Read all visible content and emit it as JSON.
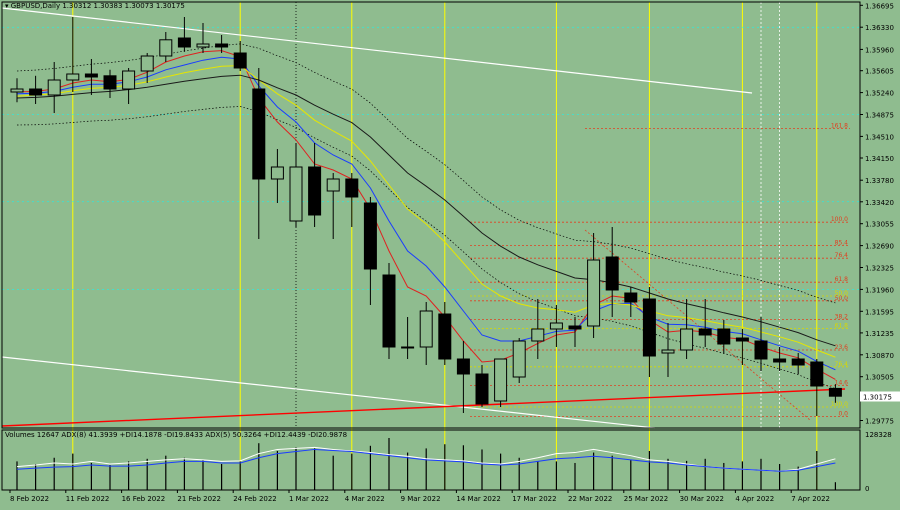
{
  "header": {
    "symbol": "GBPUSD,Daily",
    "ohlc": "1.30312 1.30383 1.30073 1.30175"
  },
  "indicator": {
    "text": "Volumes 12647  ADX(8) 41.3939 +DI14.1878 -DI19.8433  ADX(5) 50.3264 +DI12.4439 -DI20.9878",
    "max_label": "128328",
    "zero_label": "0"
  },
  "colors": {
    "background": "#8fbc8f",
    "bull_candle": "#8fbc8f",
    "bear_candle": "#000000",
    "ma_red": "#e02020",
    "ma_blue": "#1a3cff",
    "ma_yellow": "#e6e600",
    "ma_black": "#1a1a1a",
    "vline": "#ffff00",
    "trend_white": "#ffffff",
    "trend_red": "#ff0000",
    "cyan_level": "#00ffff",
    "fib_red": "#e04020",
    "fib_yellow": "#d8d800",
    "adx_white": "#ffffff",
    "adx_blue": "#1a3cff"
  },
  "chart_data": {
    "type": "candlestick",
    "title": "GBPUSD,Daily",
    "ylim": [
      1.2965,
      1.3675
    ],
    "y_ticks": [
      "1.36695",
      "1.36330",
      "1.35960",
      "1.35605",
      "1.35240",
      "1.34875",
      "1.34510",
      "1.34150",
      "1.33780",
      "1.33420",
      "1.33055",
      "1.32690",
      "1.32325",
      "1.31960",
      "1.31595",
      "1.31235",
      "1.30870",
      "1.30505",
      "1.30175",
      "1.29775"
    ],
    "current_price": "1.30175",
    "x_labels": [
      "8 Feb 2022",
      "11 Feb 2022",
      "16 Feb 2022",
      "21 Feb 2022",
      "24 Feb 2022",
      "1 Mar 2022",
      "4 Mar 2022",
      "9 Mar 2022",
      "14 Mar 2022",
      "17 Mar 2022",
      "22 Mar 2022",
      "25 Mar 2022",
      "30 Mar 2022",
      "4 Apr 2022",
      "7 Apr 2022"
    ],
    "candles": [
      {
        "o": 1.3525,
        "h": 1.3548,
        "l": 1.3508,
        "c": 1.353
      },
      {
        "o": 1.353,
        "h": 1.3552,
        "l": 1.3505,
        "c": 1.352
      },
      {
        "o": 1.352,
        "h": 1.3575,
        "l": 1.349,
        "c": 1.3545
      },
      {
        "o": 1.3545,
        "h": 1.365,
        "l": 1.3525,
        "c": 1.3555
      },
      {
        "o": 1.3555,
        "h": 1.358,
        "l": 1.352,
        "c": 1.355
      },
      {
        "o": 1.3552,
        "h": 1.3562,
        "l": 1.3515,
        "c": 1.353
      },
      {
        "o": 1.353,
        "h": 1.3565,
        "l": 1.3505,
        "c": 1.356
      },
      {
        "o": 1.356,
        "h": 1.359,
        "l": 1.354,
        "c": 1.3585
      },
      {
        "o": 1.3585,
        "h": 1.3625,
        "l": 1.3575,
        "c": 1.3612
      },
      {
        "o": 1.3615,
        "h": 1.365,
        "l": 1.3592,
        "c": 1.36
      },
      {
        "o": 1.36,
        "h": 1.364,
        "l": 1.359,
        "c": 1.3605
      },
      {
        "o": 1.3605,
        "h": 1.362,
        "l": 1.359,
        "c": 1.36
      },
      {
        "o": 1.359,
        "h": 1.361,
        "l": 1.356,
        "c": 1.3565
      },
      {
        "o": 1.353,
        "h": 1.3565,
        "l": 1.328,
        "c": 1.338
      },
      {
        "o": 1.338,
        "h": 1.343,
        "l": 1.334,
        "c": 1.34
      },
      {
        "o": 1.331,
        "h": 1.344,
        "l": 1.33,
        "c": 1.34
      },
      {
        "o": 1.34,
        "h": 1.344,
        "l": 1.33,
        "c": 1.332
      },
      {
        "o": 1.336,
        "h": 1.339,
        "l": 1.328,
        "c": 1.338
      },
      {
        "o": 1.338,
        "h": 1.339,
        "l": 1.33,
        "c": 1.335
      },
      {
        "o": 1.334,
        "h": 1.335,
        "l": 1.317,
        "c": 1.323
      },
      {
        "o": 1.322,
        "h": 1.324,
        "l": 1.308,
        "c": 1.31
      },
      {
        "o": 1.31,
        "h": 1.315,
        "l": 1.308,
        "c": 1.31
      },
      {
        "o": 1.31,
        "h": 1.3175,
        "l": 1.307,
        "c": 1.316
      },
      {
        "o": 1.3155,
        "h": 1.3175,
        "l": 1.307,
        "c": 1.308
      },
      {
        "o": 1.308,
        "h": 1.311,
        "l": 1.299,
        "c": 1.3055
      },
      {
        "o": 1.3055,
        "h": 1.307,
        "l": 1.3,
        "c": 1.3005
      },
      {
        "o": 1.301,
        "h": 1.308,
        "l": 1.3,
        "c": 1.308
      },
      {
        "o": 1.305,
        "h": 1.3115,
        "l": 1.304,
        "c": 1.311
      },
      {
        "o": 1.311,
        "h": 1.318,
        "l": 1.308,
        "c": 1.313
      },
      {
        "o": 1.313,
        "h": 1.317,
        "l": 1.31,
        "c": 1.314
      },
      {
        "o": 1.3135,
        "h": 1.315,
        "l": 1.31,
        "c": 1.313
      },
      {
        "o": 1.3135,
        "h": 1.329,
        "l": 1.3115,
        "c": 1.3245
      },
      {
        "o": 1.325,
        "h": 1.33,
        "l": 1.315,
        "c": 1.3195
      },
      {
        "o": 1.319,
        "h": 1.32,
        "l": 1.315,
        "c": 1.3175
      },
      {
        "o": 1.318,
        "h": 1.32,
        "l": 1.305,
        "c": 1.3085
      },
      {
        "o": 1.309,
        "h": 1.314,
        "l": 1.305,
        "c": 1.3095
      },
      {
        "o": 1.3095,
        "h": 1.318,
        "l": 1.308,
        "c": 1.313
      },
      {
        "o": 1.313,
        "h": 1.318,
        "l": 1.31,
        "c": 1.312
      },
      {
        "o": 1.313,
        "h": 1.3145,
        "l": 1.309,
        "c": 1.3105
      },
      {
        "o": 1.3115,
        "h": 1.313,
        "l": 1.307,
        "c": 1.311
      },
      {
        "o": 1.311,
        "h": 1.315,
        "l": 1.306,
        "c": 1.308
      },
      {
        "o": 1.308,
        "h": 1.31,
        "l": 1.306,
        "c": 1.3075
      },
      {
        "o": 1.308,
        "h": 1.309,
        "l": 1.3055,
        "c": 1.307
      },
      {
        "o": 1.3075,
        "h": 1.308,
        "l": 1.2985,
        "c": 1.3035
      },
      {
        "o": 1.3031,
        "h": 1.3038,
        "l": 1.3007,
        "c": 1.3018
      }
    ],
    "series": [
      {
        "name": "",
        "color": "#e02020",
        "values": [
          1.3525,
          1.3526,
          1.353,
          1.354,
          1.3545,
          1.3542,
          1.3546,
          1.3558,
          1.3575,
          1.3585,
          1.3592,
          1.3594,
          1.3584,
          1.3515,
          1.3475,
          1.3445,
          1.3405,
          1.3395,
          1.338,
          1.333,
          1.326,
          1.32,
          1.3185,
          1.315,
          1.311,
          1.3075,
          1.3078,
          1.309,
          1.3106,
          1.312,
          1.3125,
          1.317,
          1.3185,
          1.3181,
          1.3145,
          1.3125,
          1.3128,
          1.3125,
          1.3116,
          1.3113,
          1.31,
          1.309,
          1.3082,
          1.3063,
          1.3046
        ]
      },
      {
        "name": "",
        "color": "#1a3cff",
        "values": [
          1.3522,
          1.3523,
          1.3526,
          1.3533,
          1.3538,
          1.3538,
          1.3542,
          1.355,
          1.3562,
          1.357,
          1.3578,
          1.3583,
          1.358,
          1.3535,
          1.35,
          1.3475,
          1.344,
          1.342,
          1.3405,
          1.3365,
          1.331,
          1.326,
          1.3235,
          1.32,
          1.316,
          1.312,
          1.311,
          1.311,
          1.3118,
          1.3126,
          1.3128,
          1.316,
          1.3172,
          1.3173,
          1.315,
          1.3138,
          1.3137,
          1.3133,
          1.3126,
          1.3122,
          1.3112,
          1.3102,
          1.3093,
          1.3076,
          1.3062
        ]
      },
      {
        "name": "",
        "color": "#e6e600",
        "values": [
          1.3518,
          1.352,
          1.3522,
          1.3527,
          1.3531,
          1.3533,
          1.3536,
          1.3542,
          1.355,
          1.3557,
          1.3563,
          1.3568,
          1.3569,
          1.3545,
          1.3522,
          1.3503,
          1.3478,
          1.346,
          1.3443,
          1.341,
          1.337,
          1.333,
          1.3305,
          1.3275,
          1.324,
          1.3205,
          1.3185,
          1.3172,
          1.3165,
          1.3162,
          1.3158,
          1.317,
          1.3173,
          1.317,
          1.316,
          1.3152,
          1.3149,
          1.3144,
          1.3138,
          1.3133,
          1.3125,
          1.3117,
          1.3108,
          1.3095,
          1.3083
        ]
      },
      {
        "name": "",
        "color": "#1a1a1a",
        "values": [
          1.3515,
          1.3516,
          1.3518,
          1.3521,
          1.3524,
          1.3526,
          1.3529,
          1.3533,
          1.3538,
          1.3543,
          1.3547,
          1.3551,
          1.3553,
          1.3545,
          1.3532,
          1.352,
          1.3503,
          1.3488,
          1.3474,
          1.345,
          1.342,
          1.339,
          1.3368,
          1.3345,
          1.3318,
          1.329,
          1.3268,
          1.325,
          1.3237,
          1.3226,
          1.3215,
          1.3212,
          1.3207,
          1.32,
          1.319,
          1.318,
          1.3172,
          1.3165,
          1.3157,
          1.315,
          1.3142,
          1.3133,
          1.3124,
          1.3112,
          1.3102
        ]
      }
    ],
    "volumes": [
      0.55,
      0.5,
      0.62,
      0.7,
      0.52,
      0.48,
      0.55,
      0.6,
      0.66,
      0.62,
      0.58,
      0.5,
      0.55,
      0.9,
      0.75,
      0.82,
      0.8,
      0.66,
      0.7,
      0.85,
      1.0,
      0.72,
      0.8,
      0.88,
      0.86,
      0.78,
      0.7,
      0.62,
      0.55,
      0.55,
      0.52,
      0.72,
      0.66,
      0.58,
      0.75,
      0.6,
      0.56,
      0.6,
      0.52,
      0.55,
      0.6,
      0.5,
      0.45,
      0.75,
      0.15
    ],
    "adx_white": [
      0.45,
      0.48,
      0.52,
      0.5,
      0.55,
      0.5,
      0.52,
      0.55,
      0.58,
      0.6,
      0.58,
      0.55,
      0.56,
      0.7,
      0.78,
      0.8,
      0.82,
      0.78,
      0.75,
      0.72,
      0.68,
      0.65,
      0.6,
      0.58,
      0.56,
      0.52,
      0.5,
      0.55,
      0.62,
      0.7,
      0.72,
      0.78,
      0.72,
      0.66,
      0.58,
      0.55,
      0.5,
      0.45,
      0.42,
      0.4,
      0.38,
      0.36,
      0.4,
      0.5,
      0.6
    ],
    "adx_blue": [
      0.4,
      0.42,
      0.44,
      0.45,
      0.48,
      0.46,
      0.46,
      0.48,
      0.52,
      0.55,
      0.55,
      0.52,
      0.52,
      0.62,
      0.7,
      0.74,
      0.78,
      0.76,
      0.74,
      0.7,
      0.66,
      0.62,
      0.58,
      0.56,
      0.54,
      0.5,
      0.48,
      0.5,
      0.55,
      0.6,
      0.62,
      0.65,
      0.62,
      0.58,
      0.54,
      0.52,
      0.48,
      0.45,
      0.42,
      0.4,
      0.38,
      0.36,
      0.38,
      0.45,
      0.52
    ],
    "fib_levels": [
      {
        "label": "161.8",
        "price": 1.3464,
        "color": "#e04020"
      },
      {
        "label": "100.0",
        "price": 1.3308,
        "color": "#e04020"
      },
      {
        "label": "85.4",
        "price": 1.3269,
        "color": "#e04020"
      },
      {
        "label": "76.4",
        "price": 1.3248,
        "color": "#e04020"
      },
      {
        "label": "61.8",
        "price": 1.3208,
        "color": "#e04020"
      },
      {
        "label": "50.0",
        "price": 1.3177,
        "color": "#e04020"
      },
      {
        "label": "38.2",
        "price": 1.3146,
        "color": "#e04020"
      },
      {
        "label": "23.6",
        "price": 1.3095,
        "color": "#e04020"
      },
      {
        "label": "14.6",
        "price": 1.3036,
        "color": "#e04020"
      },
      {
        "label": "0.0",
        "price": 1.2984,
        "color": "#e04020"
      },
      {
        "label": "100.0",
        "price": 1.3,
        "color": "#d8d800"
      },
      {
        "label": "76.4",
        "price": 1.3067,
        "color": "#d8d800"
      },
      {
        "label": "61.8",
        "price": 1.3131,
        "color": "#d8d800"
      },
      {
        "label": "50.0",
        "price": 1.3185,
        "color": "#d8d800"
      }
    ],
    "cyan_levels": [
      1.3633,
      1.34875,
      1.3342,
      1.3196
    ],
    "grid": false
  }
}
